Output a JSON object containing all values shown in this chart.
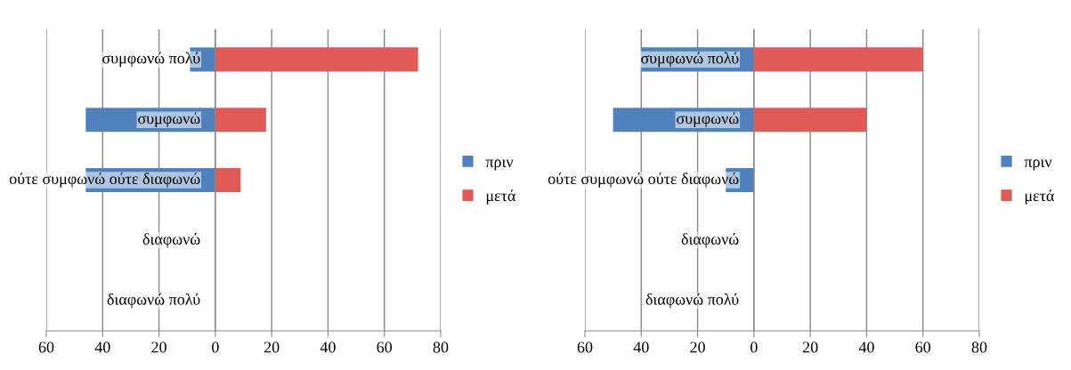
{
  "chart_data": [
    {
      "type": "bar",
      "orientation": "horizontal",
      "stacked": true,
      "categories": [
        "συμφωνώ πολύ",
        "συμφωνώ",
        "ούτε συμφωνώ ούτε διαφωνώ",
        "διαφωνώ",
        "διαφωνώ πολύ"
      ],
      "series": [
        {
          "name": "πριν",
          "color": "#4f81bd",
          "values": [
            -9,
            -46,
            -46,
            0,
            0
          ]
        },
        {
          "name": "μετά",
          "color": "#e05a57",
          "values": [
            72,
            18,
            9,
            0,
            0
          ]
        }
      ],
      "xlim": [
        -60,
        80
      ],
      "xticks": [
        {
          "value": -60,
          "label": "60"
        },
        {
          "value": -40,
          "label": "40"
        },
        {
          "value": -20,
          "label": "20"
        },
        0,
        20,
        40,
        60,
        80
      ],
      "grid": "x",
      "legend": "right"
    },
    {
      "type": "bar",
      "orientation": "horizontal",
      "stacked": true,
      "categories": [
        "συμφωνώ πολύ",
        "συμφωνώ",
        "ούτε συμφωνώ ούτε διαφωνώ",
        "διαφωνώ",
        "διαφωνώ πολύ"
      ],
      "series": [
        {
          "name": "πριν",
          "color": "#4f81bd",
          "values": [
            -40,
            -50,
            -10,
            0,
            0
          ]
        },
        {
          "name": "μετά",
          "color": "#e05a57",
          "values": [
            60,
            40,
            0,
            0,
            0
          ]
        }
      ],
      "xlim": [
        -60,
        80
      ],
      "xticks": [
        {
          "value": -60,
          "label": "60"
        },
        {
          "value": -40,
          "label": "40"
        },
        {
          "value": -20,
          "label": "20"
        },
        0,
        20,
        40,
        60,
        80
      ],
      "grid": "x",
      "legend": "right"
    }
  ]
}
